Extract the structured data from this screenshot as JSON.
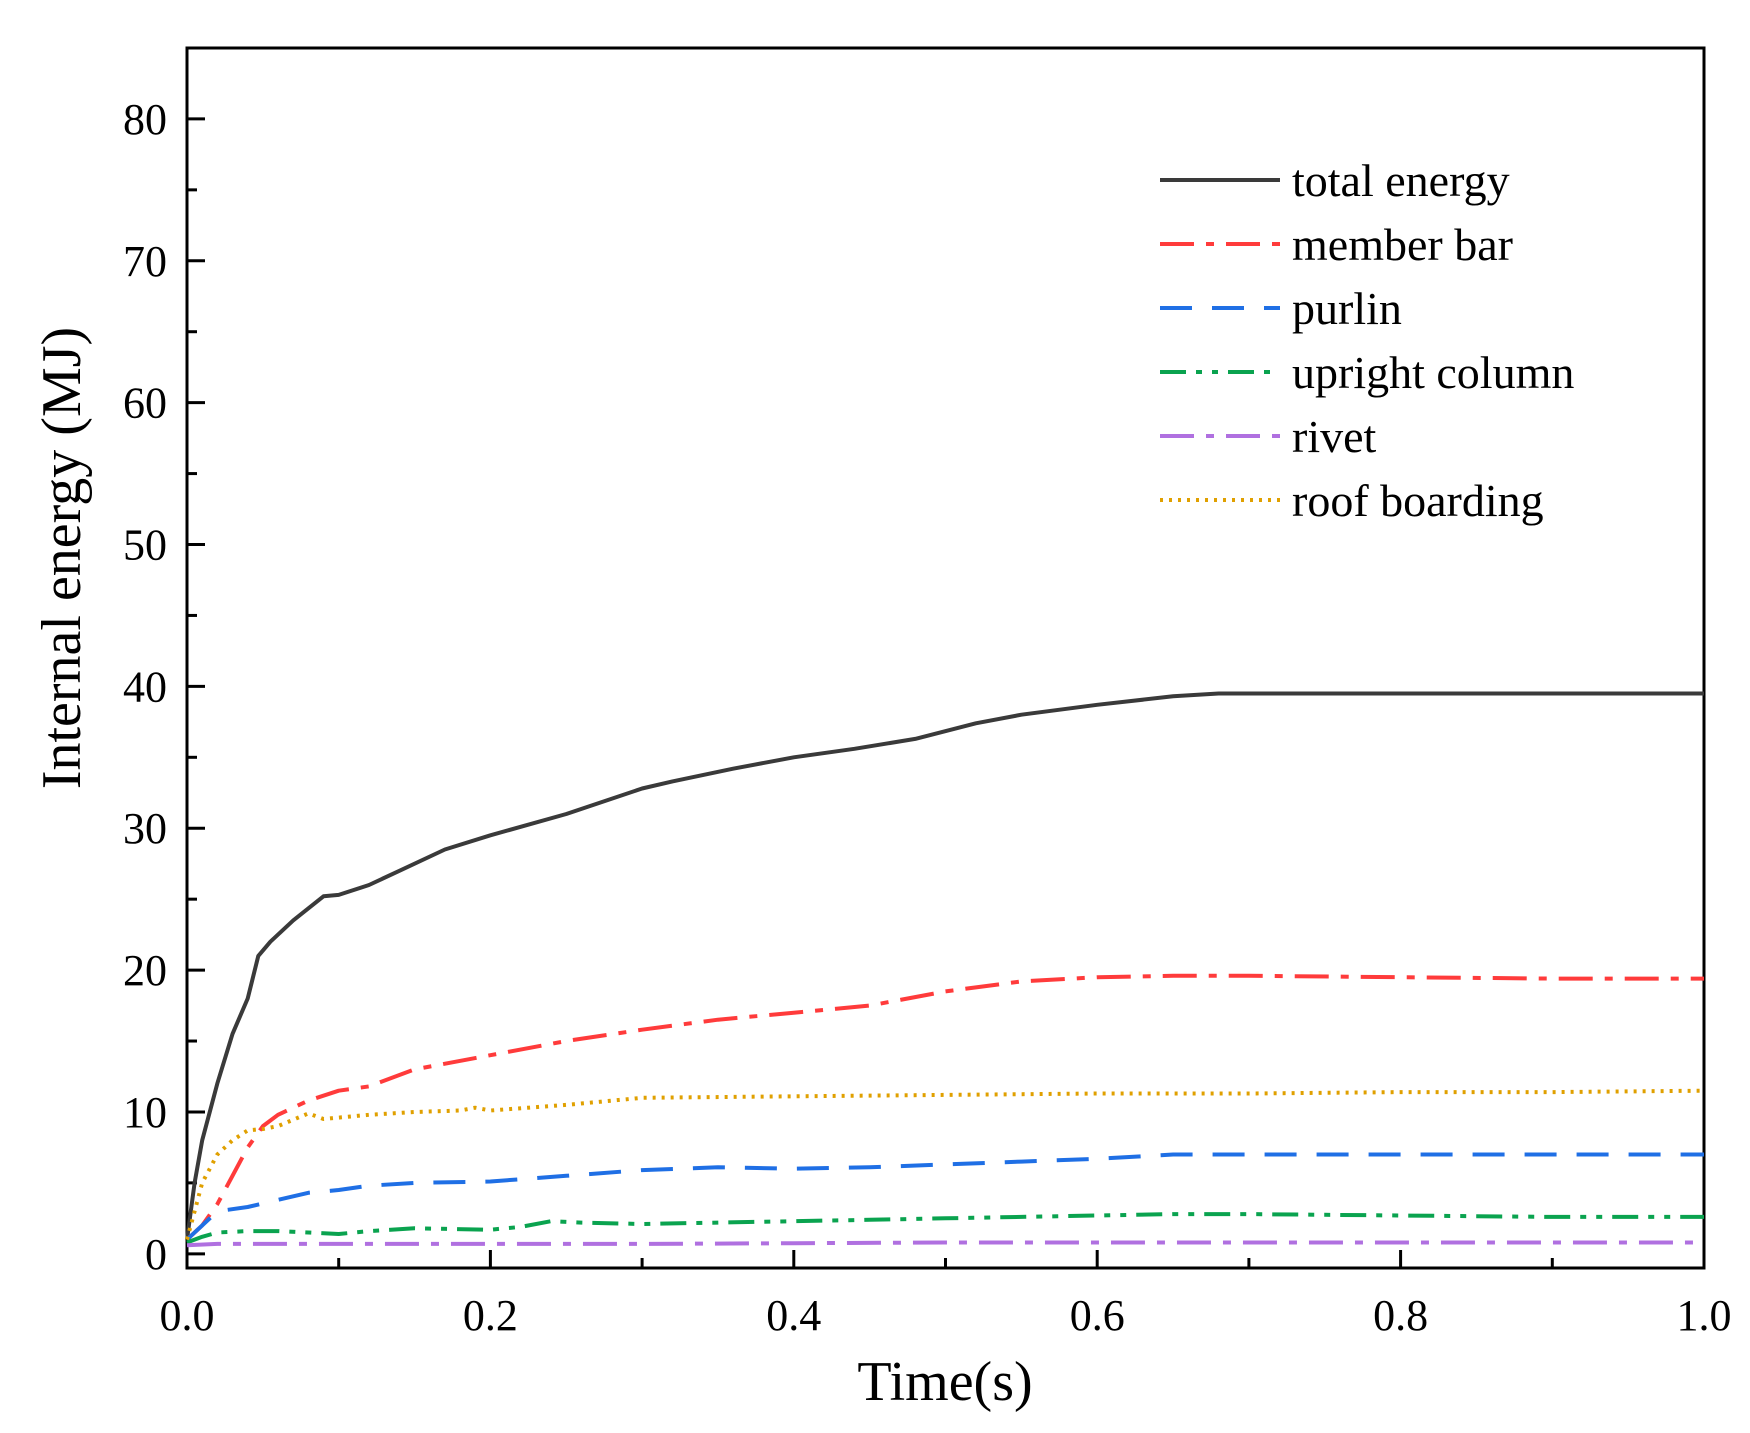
{
  "chart_data": {
    "type": "line",
    "title": "",
    "xlabel": "Time(s)",
    "ylabel": "Internal energy (MJ)",
    "xlim": [
      0,
      1.0
    ],
    "ylim": [
      -1,
      85
    ],
    "x_ticks": [
      "0.0",
      "0.2",
      "0.4",
      "0.6",
      "0.8",
      "1.0"
    ],
    "y_ticks": [
      "0",
      "10",
      "20",
      "30",
      "40",
      "50",
      "60",
      "70",
      "80"
    ],
    "grid": false,
    "legend_position": "top-right",
    "series": [
      {
        "name": "total energy",
        "color": "#3a3a3a",
        "dash": "solid",
        "x": [
          0,
          0.005,
          0.01,
          0.02,
          0.03,
          0.04,
          0.047,
          0.055,
          0.07,
          0.09,
          0.1,
          0.12,
          0.14,
          0.17,
          0.2,
          0.25,
          0.3,
          0.32,
          0.36,
          0.4,
          0.44,
          0.48,
          0.52,
          0.55,
          0.6,
          0.65,
          0.68,
          0.75,
          0.8,
          0.9,
          1.0
        ],
        "y": [
          1,
          5,
          8,
          12,
          15.5,
          18,
          21,
          22,
          23.5,
          25.2,
          25.3,
          26,
          27,
          28.5,
          29.5,
          31,
          32.8,
          33.3,
          34.2,
          35,
          35.6,
          36.3,
          37.4,
          38,
          38.7,
          39.3,
          39.5,
          39.5,
          39.5,
          39.5,
          39.5
        ]
      },
      {
        "name": "member bar",
        "color": "#ff3b3b",
        "dash": "dashdot",
        "x": [
          0,
          0.01,
          0.02,
          0.03,
          0.04,
          0.05,
          0.06,
          0.07,
          0.08,
          0.1,
          0.12,
          0.15,
          0.2,
          0.25,
          0.3,
          0.35,
          0.4,
          0.45,
          0.5,
          0.55,
          0.6,
          0.65,
          0.7,
          0.8,
          0.9,
          1.0
        ],
        "y": [
          1,
          2,
          3.5,
          5.5,
          7.5,
          9,
          9.8,
          10.3,
          10.8,
          11.5,
          11.8,
          13,
          14,
          15,
          15.8,
          16.5,
          17,
          17.5,
          18.5,
          19.2,
          19.5,
          19.6,
          19.6,
          19.5,
          19.4,
          19.4
        ]
      },
      {
        "name": "purlin",
        "color": "#1f6fe5",
        "dash": "dash",
        "x": [
          0,
          0.01,
          0.02,
          0.04,
          0.06,
          0.08,
          0.1,
          0.12,
          0.15,
          0.2,
          0.25,
          0.3,
          0.35,
          0.4,
          0.45,
          0.5,
          0.55,
          0.6,
          0.65,
          0.7,
          0.8,
          0.9,
          1.0
        ],
        "y": [
          1,
          2,
          3,
          3.3,
          3.8,
          4.3,
          4.5,
          4.8,
          5,
          5.1,
          5.5,
          5.9,
          6.1,
          6,
          6.1,
          6.3,
          6.5,
          6.7,
          7,
          7,
          7,
          7,
          7
        ]
      },
      {
        "name": "upright column",
        "color": "#0aa34f",
        "dash": "dashdotdot",
        "x": [
          0,
          0.01,
          0.02,
          0.04,
          0.06,
          0.08,
          0.1,
          0.12,
          0.15,
          0.2,
          0.22,
          0.24,
          0.26,
          0.3,
          0.35,
          0.4,
          0.45,
          0.5,
          0.55,
          0.6,
          0.65,
          0.7,
          0.8,
          0.9,
          1.0
        ],
        "y": [
          0.8,
          1.2,
          1.5,
          1.6,
          1.6,
          1.5,
          1.4,
          1.6,
          1.8,
          1.7,
          1.9,
          2.3,
          2.2,
          2.1,
          2.2,
          2.3,
          2.4,
          2.5,
          2.6,
          2.7,
          2.8,
          2.8,
          2.7,
          2.6,
          2.6
        ]
      },
      {
        "name": "rivet",
        "color": "#b070e0",
        "dash": "dashdot",
        "x": [
          0,
          0.02,
          0.1,
          0.2,
          0.3,
          0.4,
          0.5,
          0.6,
          0.7,
          0.8,
          0.9,
          1.0
        ],
        "y": [
          0.6,
          0.7,
          0.7,
          0.7,
          0.7,
          0.75,
          0.8,
          0.8,
          0.8,
          0.8,
          0.8,
          0.8
        ]
      },
      {
        "name": "roof boarding",
        "color": "#e0a000",
        "dash": "dot",
        "x": [
          0,
          0.005,
          0.01,
          0.02,
          0.03,
          0.04,
          0.05,
          0.06,
          0.08,
          0.09,
          0.1,
          0.12,
          0.15,
          0.18,
          0.19,
          0.2,
          0.25,
          0.3,
          0.4,
          0.5,
          0.6,
          0.7,
          0.8,
          0.9,
          1.0
        ],
        "y": [
          1,
          3,
          5,
          7,
          8,
          8.7,
          8.8,
          9,
          9.9,
          9.5,
          9.6,
          9.8,
          10,
          10.1,
          10.3,
          10.1,
          10.5,
          11,
          11.1,
          11.2,
          11.3,
          11.3,
          11.4,
          11.4,
          11.5
        ]
      }
    ]
  }
}
